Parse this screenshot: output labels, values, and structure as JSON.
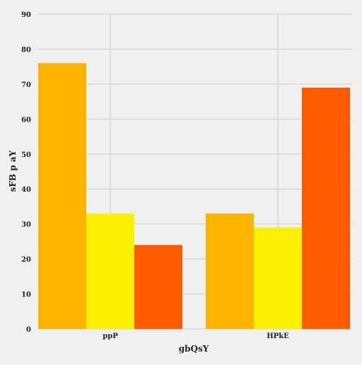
{
  "chart_data": {
    "type": "bar",
    "title": "",
    "xlabel": "gbQsY",
    "ylabel": "sFB p aY",
    "categories": [
      "ppP",
      "HPkE"
    ],
    "series": [
      {
        "color": "#ffb400",
        "values": [
          76,
          33
        ]
      },
      {
        "color": "#fbf000",
        "values": [
          33,
          29
        ]
      },
      {
        "color": "#ff5a00",
        "values": [
          24,
          69
        ]
      }
    ],
    "ylim": [
      0,
      90
    ],
    "yticks": [
      0,
      10,
      20,
      30,
      40,
      50,
      60,
      70,
      80,
      90
    ],
    "grid": true,
    "legend": "none"
  },
  "colors": {
    "background": "#f0f0f0",
    "grid": "#cccccc",
    "text": "#222222"
  }
}
